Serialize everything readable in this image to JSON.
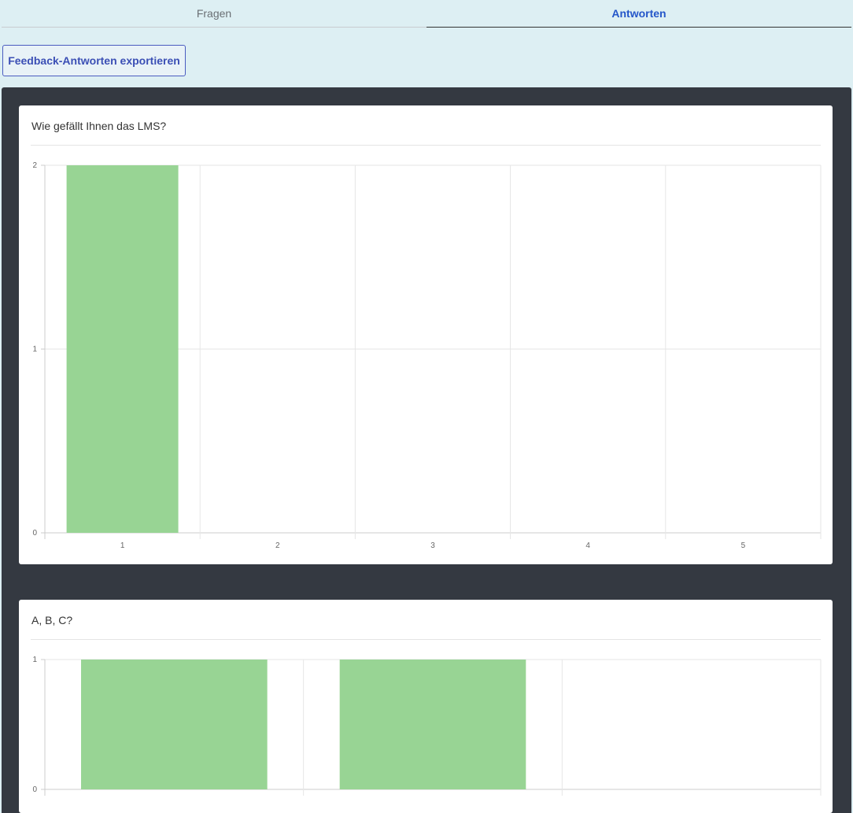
{
  "tabs": [
    {
      "label": "Fragen",
      "active": false
    },
    {
      "label": "Antworten",
      "active": true
    }
  ],
  "export_button": "Feedback-Antworten exportieren",
  "colors": {
    "bar": "#98d494",
    "accent": "#2456c9",
    "panel": "#343941"
  },
  "chart_data": [
    {
      "type": "bar",
      "title": "Wie gefällt Ihnen das LMS?",
      "categories": [
        "1",
        "2",
        "3",
        "4",
        "5"
      ],
      "values": [
        2,
        0,
        0,
        0,
        0
      ],
      "ylim": [
        0,
        2
      ],
      "yticks": [
        "0",
        "1",
        "2"
      ],
      "grid": true
    },
    {
      "type": "bar",
      "title": "A, B, C?",
      "categories": [
        "",
        "",
        ""
      ],
      "values": [
        1,
        1,
        0
      ],
      "ylim": [
        0,
        1
      ],
      "yticks": [
        "0",
        "1"
      ],
      "grid": true
    }
  ]
}
